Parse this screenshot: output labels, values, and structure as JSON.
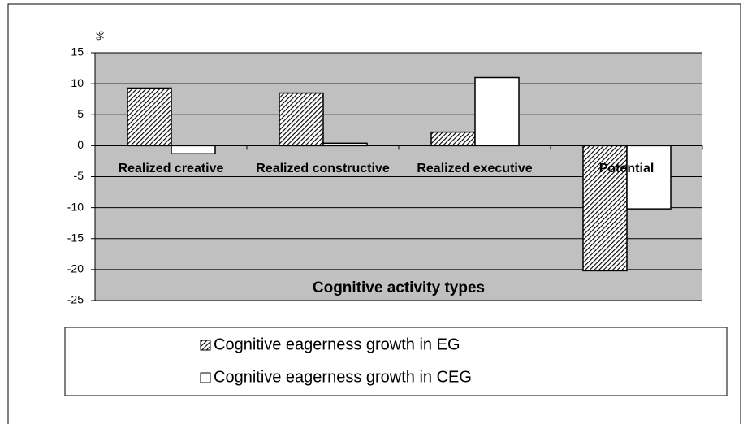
{
  "chart_data": {
    "type": "bar",
    "y_label": "%",
    "x_label": "Cognitive activity types",
    "categories": [
      "Realized creative",
      "Realized constructive",
      "Realized executive",
      "Potential"
    ],
    "series": [
      {
        "name": "Cognitive eagerness growth in EG",
        "color": "#000000",
        "fill": "hatch",
        "values": [
          9.3,
          8.5,
          2.2,
          -20.2
        ]
      },
      {
        "name": "Cognitive eagerness growth in CEG",
        "color": "#ffffff",
        "fill": "solid",
        "values": [
          -1.3,
          0.4,
          11,
          -10.2
        ]
      }
    ],
    "ylim": [
      -25,
      15
    ],
    "yticks": [
      15,
      10,
      5,
      0,
      -5,
      -10,
      -15,
      -20,
      -25
    ],
    "grid": true,
    "legend": "bottom"
  }
}
